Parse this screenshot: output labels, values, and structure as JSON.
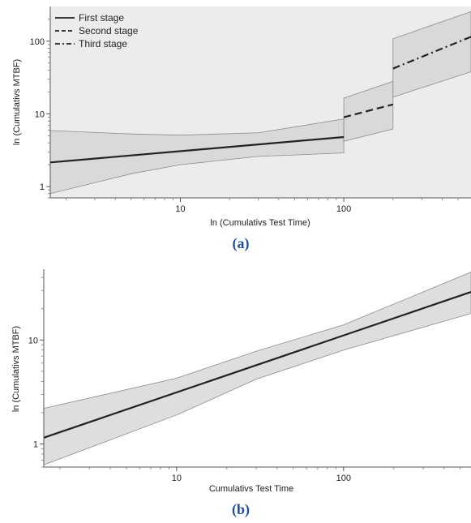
{
  "chart_data": [
    {
      "type": "line",
      "panel_label": "(a)",
      "xlabel": "ln (Cumulativs Test Time)",
      "ylabel": "ln (Cumulativs MTBF)",
      "xscale": "log",
      "yscale": "log",
      "xlim": [
        1.6,
        600
      ],
      "ylim": [
        0.7,
        300
      ],
      "xticks": [
        10,
        100
      ],
      "xtick_labels": [
        "10",
        "100"
      ],
      "yticks": [
        1,
        10,
        100
      ],
      "ytick_labels": [
        "1",
        "10",
        "100"
      ],
      "grid": false,
      "legend_position": "top-left",
      "series": [
        {
          "name": "First stage",
          "style": "solid",
          "x": [
            1.6,
            100
          ],
          "y": [
            2.15,
            4.8
          ],
          "band_lower": [
            [
              1.6,
              0.8
            ],
            [
              5,
              1.5
            ],
            [
              10,
              2.0
            ],
            [
              30,
              2.6
            ],
            [
              100,
              2.9
            ]
          ],
          "band_upper": [
            [
              1.6,
              5.9
            ],
            [
              5,
              5.3
            ],
            [
              10,
              5.1
            ],
            [
              30,
              5.5
            ],
            [
              100,
              8.5
            ]
          ]
        },
        {
          "name": "Second stage",
          "style": "dashed",
          "x": [
            100,
            200
          ],
          "y": [
            9.0,
            13.5
          ],
          "band_lower": [
            [
              100,
              4.2
            ],
            [
              200,
              6.2
            ]
          ],
          "band_upper": [
            [
              100,
              16.5
            ],
            [
              200,
              28
            ]
          ]
        },
        {
          "name": "Third stage",
          "style": "dashdot",
          "x": [
            200,
            600
          ],
          "y": [
            42,
            115
          ],
          "band_lower": [
            [
              200,
              17
            ],
            [
              600,
              38
            ]
          ],
          "band_upper": [
            [
              200,
              108
            ],
            [
              600,
              255
            ]
          ]
        }
      ]
    },
    {
      "type": "line",
      "panel_label": "(b)",
      "xlabel": "Cumulativs Test Time",
      "ylabel": "ln (Cumulativs MTBF)",
      "xscale": "log",
      "yscale": "log",
      "xlim": [
        1.6,
        580
      ],
      "ylim": [
        0.6,
        48
      ],
      "xticks": [
        10,
        100
      ],
      "xtick_labels": [
        "10",
        "100"
      ],
      "yticks": [
        1,
        10
      ],
      "ytick_labels": [
        "1",
        "10"
      ],
      "grid": false,
      "series": [
        {
          "style": "solid",
          "x": [
            1.6,
            580
          ],
          "y": [
            1.15,
            29
          ],
          "band_lower": [
            [
              1.6,
              0.63
            ],
            [
              10,
              1.9
            ],
            [
              30,
              4.2
            ],
            [
              100,
              8
            ],
            [
              580,
              18
            ]
          ],
          "band_upper": [
            [
              1.6,
              2.2
            ],
            [
              10,
              4.3
            ],
            [
              30,
              7.8
            ],
            [
              100,
              14
            ],
            [
              580,
              45
            ]
          ]
        }
      ]
    }
  ]
}
